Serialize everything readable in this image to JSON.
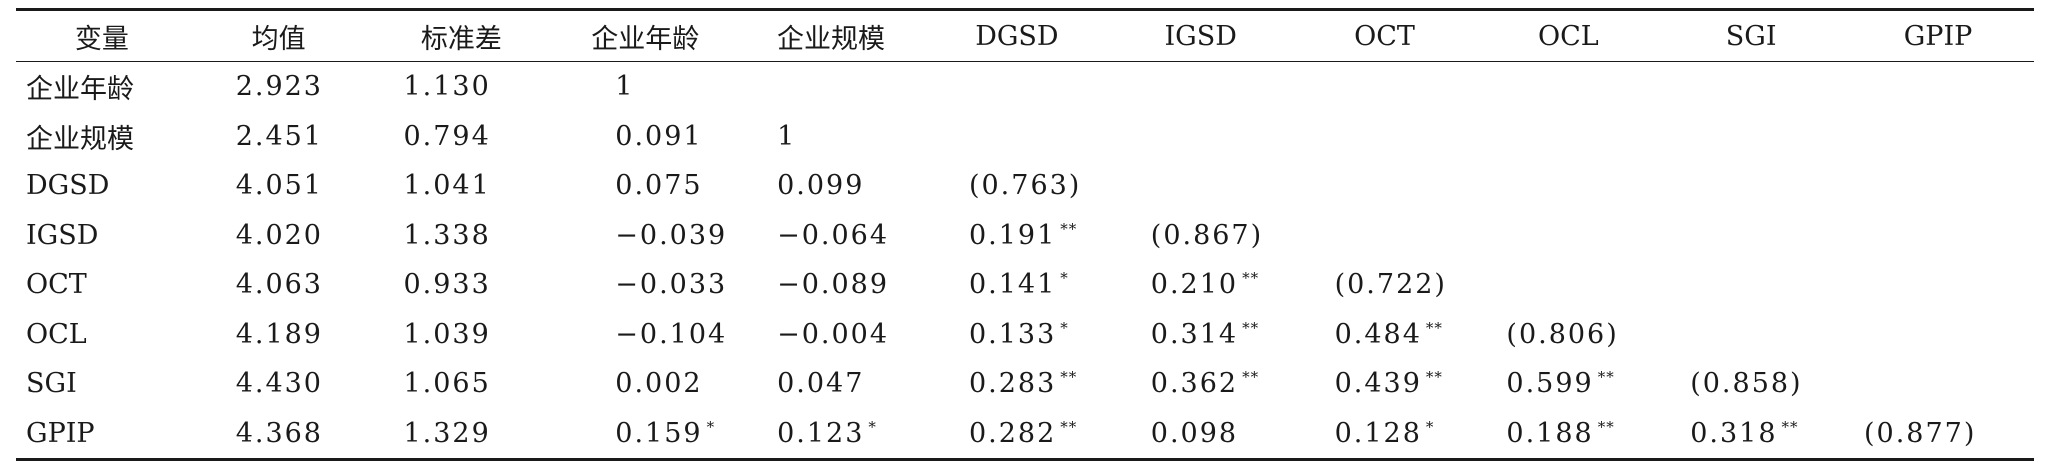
{
  "table": {
    "headers": [
      "变量",
      "均值",
      "标准差",
      "企业年龄",
      "企业规模",
      "DGSD",
      "IGSD",
      "OCT",
      "OCL",
      "SGI",
      "GPIP"
    ],
    "rows": [
      {
        "label": "企业年龄",
        "cells": [
          {
            "v": "2.923",
            "s": ""
          },
          {
            "v": "1.130",
            "s": ""
          },
          {
            "v": "1",
            "s": ""
          },
          {
            "v": "",
            "s": ""
          },
          {
            "v": "",
            "s": ""
          },
          {
            "v": "",
            "s": ""
          },
          {
            "v": "",
            "s": ""
          },
          {
            "v": "",
            "s": ""
          },
          {
            "v": "",
            "s": ""
          },
          {
            "v": "",
            "s": ""
          }
        ]
      },
      {
        "label": "企业规模",
        "cells": [
          {
            "v": "2.451",
            "s": ""
          },
          {
            "v": "0.794",
            "s": ""
          },
          {
            "v": "0.091",
            "s": ""
          },
          {
            "v": "1",
            "s": ""
          },
          {
            "v": "",
            "s": ""
          },
          {
            "v": "",
            "s": ""
          },
          {
            "v": "",
            "s": ""
          },
          {
            "v": "",
            "s": ""
          },
          {
            "v": "",
            "s": ""
          },
          {
            "v": "",
            "s": ""
          }
        ]
      },
      {
        "label": "DGSD",
        "cells": [
          {
            "v": "4.051",
            "s": ""
          },
          {
            "v": "1.041",
            "s": ""
          },
          {
            "v": "0.075",
            "s": ""
          },
          {
            "v": "0.099",
            "s": ""
          },
          {
            "v": "(0.763)",
            "s": ""
          },
          {
            "v": "",
            "s": ""
          },
          {
            "v": "",
            "s": ""
          },
          {
            "v": "",
            "s": ""
          },
          {
            "v": "",
            "s": ""
          },
          {
            "v": "",
            "s": ""
          }
        ]
      },
      {
        "label": "IGSD",
        "cells": [
          {
            "v": "4.020",
            "s": ""
          },
          {
            "v": "1.338",
            "s": ""
          },
          {
            "v": "−0.039",
            "s": ""
          },
          {
            "v": "−0.064",
            "s": ""
          },
          {
            "v": "0.191",
            "s": "**"
          },
          {
            "v": "(0.867)",
            "s": ""
          },
          {
            "v": "",
            "s": ""
          },
          {
            "v": "",
            "s": ""
          },
          {
            "v": "",
            "s": ""
          },
          {
            "v": "",
            "s": ""
          }
        ]
      },
      {
        "label": "OCT",
        "cells": [
          {
            "v": "4.063",
            "s": ""
          },
          {
            "v": "0.933",
            "s": ""
          },
          {
            "v": "−0.033",
            "s": ""
          },
          {
            "v": "−0.089",
            "s": ""
          },
          {
            "v": "0.141",
            "s": "*"
          },
          {
            "v": "0.210",
            "s": "**"
          },
          {
            "v": "(0.722)",
            "s": ""
          },
          {
            "v": "",
            "s": ""
          },
          {
            "v": "",
            "s": ""
          },
          {
            "v": "",
            "s": ""
          }
        ]
      },
      {
        "label": "OCL",
        "cells": [
          {
            "v": "4.189",
            "s": ""
          },
          {
            "v": "1.039",
            "s": ""
          },
          {
            "v": "−0.104",
            "s": ""
          },
          {
            "v": "−0.004",
            "s": ""
          },
          {
            "v": "0.133",
            "s": "*"
          },
          {
            "v": "0.314",
            "s": "**"
          },
          {
            "v": "0.484",
            "s": "**"
          },
          {
            "v": "(0.806)",
            "s": ""
          },
          {
            "v": "",
            "s": ""
          },
          {
            "v": "",
            "s": ""
          }
        ]
      },
      {
        "label": "SGI",
        "cells": [
          {
            "v": "4.430",
            "s": ""
          },
          {
            "v": "1.065",
            "s": ""
          },
          {
            "v": "0.002",
            "s": ""
          },
          {
            "v": "0.047",
            "s": ""
          },
          {
            "v": "0.283",
            "s": "**"
          },
          {
            "v": "0.362",
            "s": "**"
          },
          {
            "v": "0.439",
            "s": "**"
          },
          {
            "v": "0.599",
            "s": "**"
          },
          {
            "v": "(0.858)",
            "s": ""
          },
          {
            "v": "",
            "s": ""
          }
        ]
      },
      {
        "label": "GPIP",
        "cells": [
          {
            "v": "4.368",
            "s": ""
          },
          {
            "v": "1.329",
            "s": ""
          },
          {
            "v": "0.159",
            "s": "*"
          },
          {
            "v": "0.123",
            "s": "*"
          },
          {
            "v": "0.282",
            "s": "**"
          },
          {
            "v": "0.098",
            "s": ""
          },
          {
            "v": "0.128",
            "s": "*"
          },
          {
            "v": "0.188",
            "s": "**"
          },
          {
            "v": "0.318",
            "s": "**"
          },
          {
            "v": "(0.877)",
            "s": ""
          }
        ]
      }
    ]
  }
}
